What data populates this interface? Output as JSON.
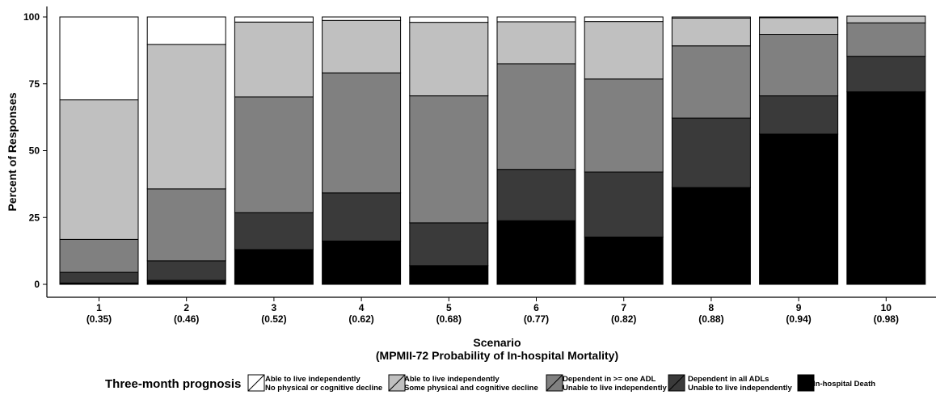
{
  "chart_data": {
    "type": "bar",
    "stacked": true,
    "ylabel": "Percent of Responses",
    "xlabel_line1": "Scenario",
    "xlabel_line2": "(MPMII-72 Probability of In-hospital Mortality)",
    "ylim": [
      0,
      100
    ],
    "yticks": [
      0,
      25,
      50,
      75,
      100
    ],
    "grid": false,
    "categories": [
      {
        "label": "1",
        "sublabel": "(0.35)"
      },
      {
        "label": "2",
        "sublabel": "(0.46)"
      },
      {
        "label": "3",
        "sublabel": "(0.52)"
      },
      {
        "label": "4",
        "sublabel": "(0.62)"
      },
      {
        "label": "5",
        "sublabel": "(0.68)"
      },
      {
        "label": "6",
        "sublabel": "(0.77)"
      },
      {
        "label": "7",
        "sublabel": "(0.82)"
      },
      {
        "label": "8",
        "sublabel": "(0.88)"
      },
      {
        "label": "9",
        "sublabel": "(0.94)"
      },
      {
        "label": "10",
        "sublabel": "(0.98)"
      }
    ],
    "legend_title": "Three-month prognosis",
    "legend_position": "bottom",
    "series": [
      {
        "line1": "In-hospital Death",
        "line2": "",
        "color": "#000000",
        "values": [
          0.5,
          1.5,
          13.0,
          16.2,
          7.0,
          23.8,
          17.7,
          36.2,
          56.2,
          72.0
        ]
      },
      {
        "line1": "Dependent in all ADLs",
        "line2": "Unable to live independently",
        "color": "#3a3a3a",
        "values": [
          4.0,
          7.3,
          13.8,
          18.0,
          16.0,
          19.2,
          24.3,
          26.0,
          14.3,
          13.3
        ]
      },
      {
        "line1": "Dependent in >= one ADL",
        "line2": "Unable to live independently",
        "color": "#808080",
        "values": [
          12.3,
          26.9,
          43.3,
          44.9,
          47.5,
          39.5,
          34.8,
          27.0,
          23.0,
          12.5
        ]
      },
      {
        "line1": "Able to live independently",
        "line2": "Some physical and cognitive decline",
        "color": "#c0c0c0",
        "values": [
          52.2,
          54.0,
          28.0,
          19.6,
          27.5,
          15.7,
          21.5,
          10.4,
          6.2,
          2.5
        ]
      },
      {
        "line1": "Able to live independently",
        "line2": "No physical or cognitive decline",
        "color": "#ffffff",
        "values": [
          31.0,
          10.3,
          1.9,
          1.3,
          2.0,
          1.8,
          1.7,
          0.4,
          0.3,
          0.0
        ]
      }
    ]
  }
}
